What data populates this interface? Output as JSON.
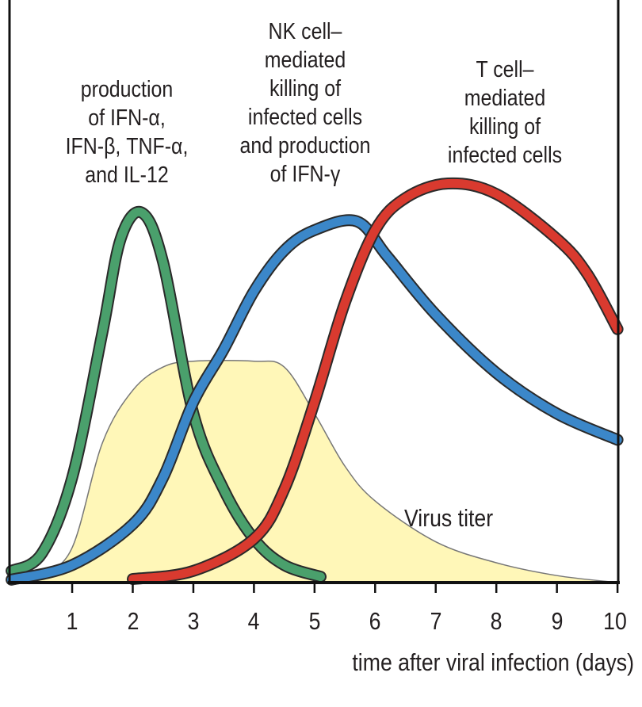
{
  "chart_data": {
    "type": "line",
    "title": "",
    "xlabel": "time after viral infection (days)",
    "ylabel": "",
    "xlim": [
      0,
      10
    ],
    "ylim": [
      0,
      100
    ],
    "x_ticks": [
      "1",
      "2",
      "3",
      "4",
      "5",
      "6",
      "7",
      "8",
      "9",
      "10"
    ],
    "grid": false,
    "series": [
      {
        "name": "Virus titer",
        "kind": "area",
        "color": "#fff7b8",
        "points": [
          [
            0,
            0
          ],
          [
            0.5,
            1.5
          ],
          [
            1,
            6
          ],
          [
            1.5,
            24
          ],
          [
            2,
            33
          ],
          [
            2.5,
            37
          ],
          [
            3,
            38
          ],
          [
            4,
            38
          ],
          [
            4.5,
            37
          ],
          [
            5,
            29
          ],
          [
            5.5,
            20
          ],
          [
            6,
            14
          ],
          [
            7,
            7
          ],
          [
            8,
            3.4
          ],
          [
            9,
            1.2
          ],
          [
            10,
            0
          ]
        ]
      },
      {
        "name": "production of IFN-α, IFN-β, TNF-α, and IL-12",
        "kind": "line",
        "color": "#4aa06c",
        "points": [
          [
            0,
            2
          ],
          [
            0.5,
            5
          ],
          [
            1,
            18
          ],
          [
            1.5,
            43
          ],
          [
            1.8,
            59
          ],
          [
            2.15,
            63.5
          ],
          [
            2.5,
            55
          ],
          [
            3,
            29
          ],
          [
            3.5,
            16
          ],
          [
            4,
            7.5
          ],
          [
            4.5,
            3
          ],
          [
            5.1,
            1
          ]
        ]
      },
      {
        "name": "NK cell–mediated killing of infected cells and production of IFN-γ",
        "kind": "line",
        "color": "#3b87c9",
        "points": [
          [
            0,
            0.5
          ],
          [
            1,
            3
          ],
          [
            2,
            10
          ],
          [
            2.5,
            18
          ],
          [
            3,
            31
          ],
          [
            3.5,
            40
          ],
          [
            4,
            50
          ],
          [
            4.5,
            57
          ],
          [
            5,
            60.5
          ],
          [
            5.7,
            62
          ],
          [
            6.2,
            56
          ],
          [
            7,
            46
          ],
          [
            8,
            36
          ],
          [
            9,
            29
          ],
          [
            10,
            24.5
          ]
        ]
      },
      {
        "name": "T cell–mediated killing of infected cells",
        "kind": "line",
        "color": "#d93a2f",
        "points": [
          [
            2,
            0.6
          ],
          [
            3,
            2
          ],
          [
            4,
            7.5
          ],
          [
            4.5,
            16
          ],
          [
            5,
            31
          ],
          [
            5.5,
            48
          ],
          [
            6,
            60.5
          ],
          [
            6.5,
            66
          ],
          [
            7.2,
            68.5
          ],
          [
            8,
            66.7
          ],
          [
            9,
            59
          ],
          [
            9.5,
            53
          ],
          [
            10,
            43.5
          ]
        ]
      }
    ],
    "annotations": {
      "innate": [
        "production",
        "of IFN-α,",
        "IFN-β, TNF-α,",
        "and IL-12"
      ],
      "nk": [
        "NK cell–",
        "mediated",
        "killing of",
        "infected cells",
        "and production",
        "of IFN-γ"
      ],
      "tcell": [
        "T cell–",
        "mediated",
        "killing of",
        "infected cells"
      ],
      "virus": "Virus titer"
    }
  }
}
